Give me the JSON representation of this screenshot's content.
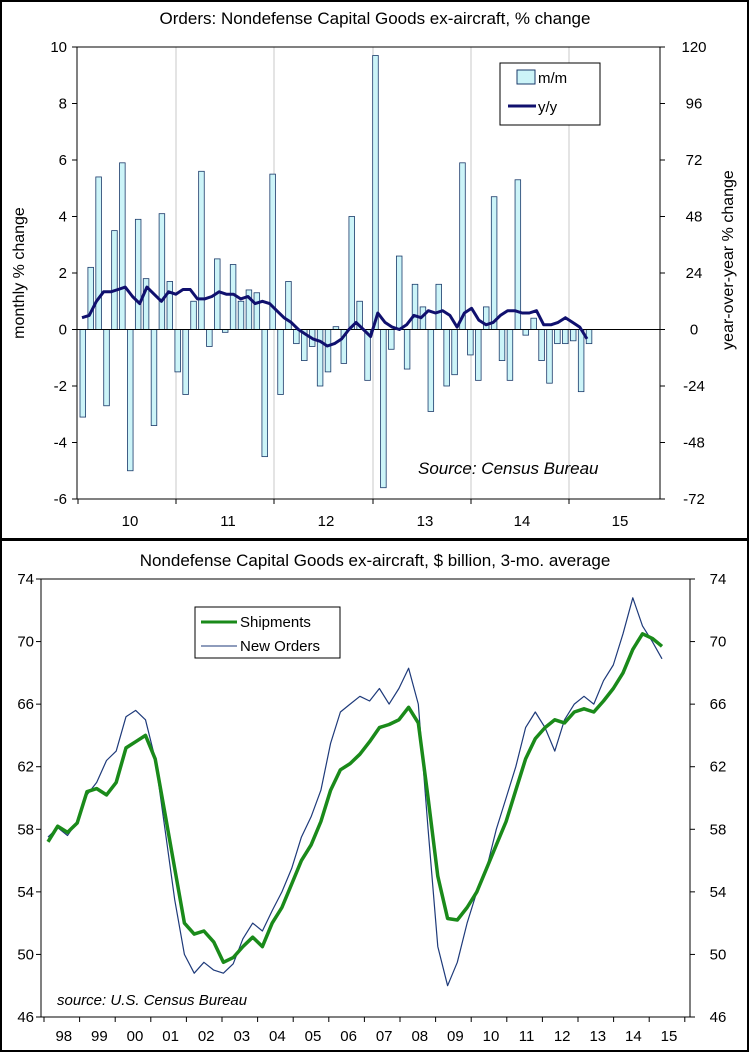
{
  "chart_data": [
    {
      "type": "bar",
      "title": "Orders: Nondefense Capital Goods ex-aircraft, % change",
      "ylabel": "monthly % change",
      "y2label": "year-over-year % change",
      "ylim": [
        -6,
        10
      ],
      "y2lim": [
        -72,
        120
      ],
      "yticks": [
        "10",
        "8",
        "6",
        "4",
        "2",
        "0",
        "-2",
        "-4",
        "-6"
      ],
      "y2ticks": [
        "120",
        "96",
        "72",
        "48",
        "24",
        "0",
        "-24",
        "-48",
        "-72"
      ],
      "xticks": [
        "10",
        "11",
        "12",
        "13",
        "14",
        "15"
      ],
      "source": "Source: Census Bureau",
      "legend": {
        "position": "top-right",
        "entries": [
          "m/m",
          "y/y"
        ]
      },
      "colors": {
        "bar_fill": "#ccf4f8",
        "bar_stroke": "#1a3a6a",
        "line": "#10106e",
        "grid": "#c8c8c8"
      },
      "series": [
        {
          "name": "m/m",
          "kind": "bar",
          "axis": "left",
          "values": [
            -3.1,
            2.2,
            5.4,
            -2.7,
            3.5,
            5.9,
            -5.0,
            3.9,
            1.8,
            -3.4,
            4.1,
            1.7,
            -1.5,
            -2.3,
            1.0,
            5.6,
            -0.6,
            2.5,
            -0.1,
            2.3,
            1.0,
            1.4,
            1.3,
            -4.5,
            5.5,
            -2.3,
            1.7,
            -0.5,
            -1.1,
            -0.6,
            -2.0,
            -1.5,
            0.1,
            -1.2,
            4.0,
            1.0,
            -1.8,
            9.7,
            -5.6,
            -0.7,
            2.6,
            -1.4,
            1.6,
            0.8,
            -2.9,
            1.6,
            -2.0,
            -1.6,
            5.9,
            -0.9,
            -1.8,
            0.8,
            4.7,
            -1.1,
            -1.8,
            5.3,
            -0.2,
            0.4,
            -1.1,
            -1.9,
            -0.5,
            -0.5,
            -0.4,
            -2.2,
            -0.5
          ]
        },
        {
          "name": "y/y",
          "kind": "line",
          "axis": "right",
          "values": [
            5,
            6,
            12,
            16,
            16,
            17,
            18,
            14,
            11,
            18,
            15,
            12,
            16,
            15,
            17,
            17,
            13,
            13,
            14,
            16,
            15,
            15,
            13,
            14,
            11,
            12,
            11,
            8,
            5,
            3,
            0,
            -2,
            -4,
            -5,
            -7,
            -6,
            -4,
            0,
            3,
            0,
            -3,
            7,
            3,
            1,
            0,
            2,
            6,
            5,
            8,
            7,
            8,
            6,
            1,
            7,
            9,
            4,
            2,
            3,
            6,
            8,
            8,
            7,
            7,
            8,
            2,
            2,
            3,
            5,
            3,
            1,
            -4
          ]
        }
      ]
    },
    {
      "type": "line",
      "title": "Nondefense Capital Goods ex-aircraft, $ billion, 3-mo. average",
      "ylim": [
        46,
        74
      ],
      "yticks": [
        "74",
        "70",
        "66",
        "62",
        "58",
        "54",
        "50",
        "46"
      ],
      "y2ticks": [
        "74",
        "70",
        "66",
        "62",
        "58",
        "54",
        "50",
        "46"
      ],
      "xticks": [
        "98",
        "99",
        "00",
        "01",
        "02",
        "03",
        "04",
        "05",
        "06",
        "07",
        "08",
        "09",
        "10",
        "11",
        "12",
        "13",
        "14",
        "15"
      ],
      "source": "source: U.S. Census Bureau",
      "legend": {
        "position": "top-left",
        "entries": [
          "Shipments",
          "New Orders"
        ]
      },
      "colors": {
        "shipments": "#1a8a1a",
        "orders": "#1e3a7a"
      },
      "series": [
        {
          "name": "Shipments",
          "values": [
            57.2,
            58.2,
            57.8,
            58.4,
            60.4,
            60.6,
            60.2,
            61.0,
            63.2,
            63.6,
            64.0,
            62.5,
            59.0,
            55.5,
            52.0,
            51.3,
            51.5,
            50.8,
            49.5,
            49.8,
            50.5,
            51.1,
            50.5,
            52.0,
            53.0,
            54.5,
            56.0,
            57.0,
            58.5,
            60.5,
            61.8,
            62.2,
            62.8,
            63.6,
            64.5,
            64.7,
            65.0,
            65.8,
            64.8,
            60.0,
            55.0,
            52.3,
            52.2,
            53.0,
            54.0,
            55.5,
            57.0,
            58.5,
            60.5,
            62.5,
            63.8,
            64.5,
            65.0,
            64.8,
            65.5,
            65.7,
            65.5,
            66.2,
            67.0,
            68.0,
            69.5,
            70.5,
            70.2,
            69.7
          ]
        },
        {
          "name": "New Orders",
          "values": [
            57.5,
            58.1,
            57.6,
            58.5,
            60.2,
            61.0,
            62.4,
            63.0,
            65.2,
            65.6,
            65.0,
            62.5,
            58.0,
            53.5,
            50.0,
            48.8,
            49.5,
            49.0,
            48.8,
            49.4,
            51.0,
            52.0,
            51.5,
            52.8,
            54.0,
            55.5,
            57.5,
            58.8,
            60.5,
            63.5,
            65.5,
            66.0,
            66.5,
            66.2,
            67.0,
            66.0,
            67.0,
            68.3,
            66.0,
            58.0,
            50.5,
            48.0,
            49.5,
            52.0,
            54.0,
            55.5,
            58.0,
            60.0,
            62.0,
            64.5,
            65.5,
            64.5,
            63.0,
            65.0,
            66.0,
            66.5,
            66.0,
            67.5,
            68.5,
            70.5,
            72.8,
            71.0,
            70.0,
            68.9
          ]
        }
      ]
    }
  ]
}
